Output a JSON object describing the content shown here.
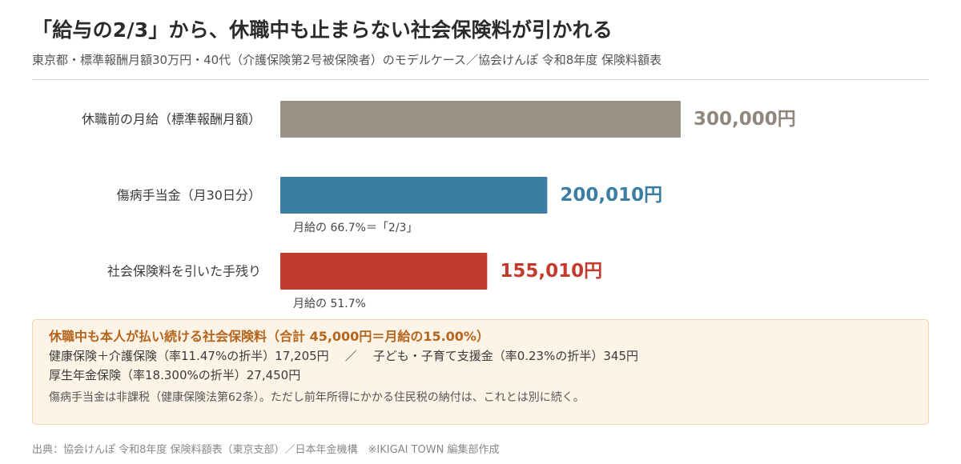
{
  "header": {
    "title": "「給与の2/3」から、休職中も止まらない社会保険料が引かれる",
    "subtitle": "東京都・標準報酬月額30万円・40代（介護保険第2号被保険者）のモデルケース／協会けんぽ 令和8年度 保険料額表"
  },
  "chart_data": {
    "type": "bar",
    "orientation": "horizontal",
    "categories": [
      "休職前の月給（標準報酬月額）",
      "傷病手当金（月30日分）",
      "社会保険料を引いた手残り"
    ],
    "values": [
      300000,
      200010,
      155010
    ],
    "value_labels": [
      "300,000円",
      "200,010円",
      "155,010円"
    ],
    "notes": [
      "",
      "月給の 66.7%＝「2/3」",
      "月給の 51.7%"
    ],
    "colors": [
      "#9a9186",
      "#3a7ea4",
      "#c23b2e"
    ],
    "value_label_colors": [
      "#8f877c",
      "#3a7ea4",
      "#c23b2e"
    ],
    "xlim": [
      0,
      300000
    ],
    "grid": false,
    "legend": "none"
  },
  "info": {
    "title": "休職中も本人が払い続ける社会保険料（合計 45,000円＝月給の15.00%）",
    "line1_left": "健康保険＋介護保険（率11.47%の折半）17,205円",
    "line1_sep": "／",
    "line1_right": "子ども・子育て支援金（率0.23%の折半）345円",
    "line2": "厚生年金保険（率18.300%の折半）27,450円",
    "note": "傷病手当金は非課税（健康保険法第62条）。ただし前年所得にかかる住民税の納付は、これとは別に続く。"
  },
  "footer": {
    "source": "出典：協会けんぽ 令和8年度 保険料額表（東京支部）／日本年金機構　※IKIGAI TOWN 編集部作成"
  }
}
